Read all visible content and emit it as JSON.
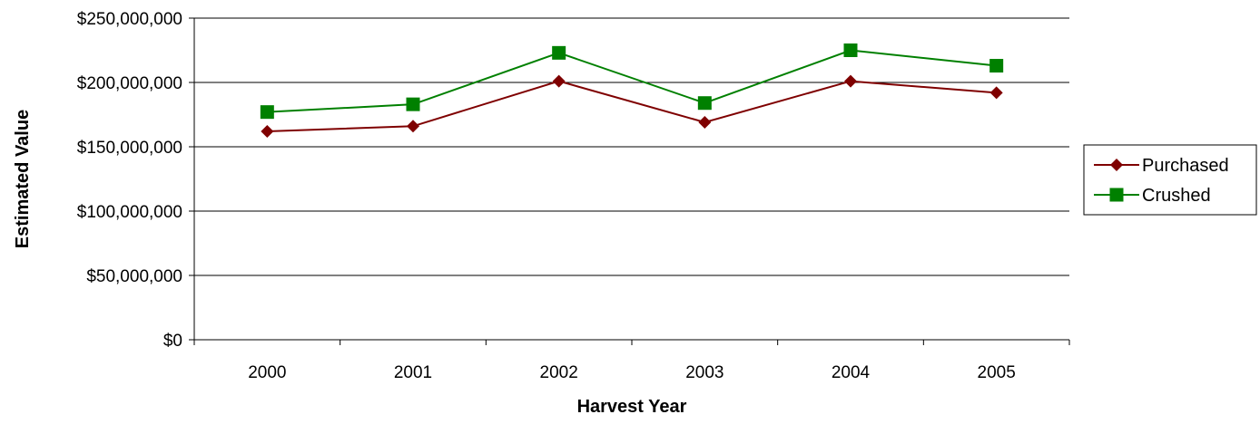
{
  "chart_data": {
    "type": "line",
    "title": "",
    "xlabel": "Harvest Year",
    "ylabel": "Estimated Value",
    "categories": [
      "2000",
      "2001",
      "2002",
      "2003",
      "2004",
      "2005"
    ],
    "ylim": [
      0,
      250000000
    ],
    "yticks": [
      0,
      50000000,
      100000000,
      150000000,
      200000000,
      250000000
    ],
    "ytick_labels": [
      "$0",
      "$50,000,000",
      "$100,000,000",
      "$150,000,000",
      "$200,000,000",
      "$250,000,000"
    ],
    "grid": true,
    "legend_position": "right",
    "series": [
      {
        "name": "Purchased",
        "color": "#7f0000",
        "marker": "diamond",
        "values": [
          162000000,
          166000000,
          201000000,
          169000000,
          201000000,
          192000000
        ]
      },
      {
        "name": "Crushed",
        "color": "#008000",
        "marker": "square",
        "values": [
          177000000,
          183000000,
          223000000,
          184000000,
          225000000,
          213000000
        ]
      }
    ]
  }
}
